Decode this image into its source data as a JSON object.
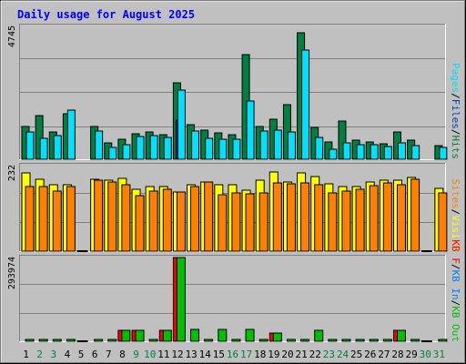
{
  "chart_data": [
    {
      "type": "bar",
      "panel": "hits-files-pages",
      "title": "Daily usage for August 2025",
      "categories": [
        "1",
        "2",
        "3",
        "4",
        "5",
        "6",
        "7",
        "8",
        "9",
        "10",
        "11",
        "12",
        "13",
        "14",
        "15",
        "16",
        "17",
        "18",
        "19",
        "20",
        "21",
        "22",
        "23",
        "24",
        "25",
        "26",
        "27",
        "28",
        "29",
        "30",
        "31"
      ],
      "weekend_days": [
        "2",
        "3",
        "9",
        "10",
        "16",
        "17",
        "23",
        "24",
        "30",
        "31"
      ],
      "ymax_label": "4745",
      "ylim": [
        0,
        4745
      ],
      "grid": true,
      "series": [
        {
          "name": "Hits",
          "color": "#008040",
          "values": [
            1180,
            1580,
            1000,
            1640,
            0,
            1190,
            580,
            730,
            920,
            990,
            900,
            2780,
            1250,
            1050,
            950,
            900,
            3780,
            1180,
            1460,
            1980,
            4570,
            1140,
            630,
            1390,
            700,
            640,
            570,
            990,
            690,
            0,
            500
          ]
        },
        {
          "name": "Files",
          "color": "#00e0ff",
          "values": [
            1000,
            750,
            860,
            1780,
            0,
            1010,
            430,
            530,
            810,
            850,
            780,
            2510,
            1030,
            770,
            730,
            740,
            2120,
            1030,
            1070,
            990,
            3970,
            800,
            370,
            580,
            520,
            520,
            460,
            600,
            500,
            0,
            430
          ]
        },
        {
          "name": "Pages",
          "color": "#0040c0",
          "values": [
            0,
            0,
            0,
            0,
            0,
            0,
            0,
            0,
            0,
            0,
            0,
            1410,
            0,
            0,
            0,
            0,
            0,
            0,
            0,
            0,
            0,
            0,
            0,
            0,
            0,
            0,
            0,
            0,
            0,
            0,
            0
          ]
        }
      ],
      "legend_labels": [
        "Pages",
        "/",
        "Files",
        "/",
        "Hits"
      ]
    },
    {
      "type": "bar",
      "panel": "visits-sites",
      "categories": [
        "1",
        "2",
        "3",
        "4",
        "5",
        "6",
        "7",
        "8",
        "9",
        "10",
        "11",
        "12",
        "13",
        "14",
        "15",
        "16",
        "17",
        "18",
        "19",
        "20",
        "21",
        "22",
        "23",
        "24",
        "25",
        "26",
        "27",
        "28",
        "29",
        "30",
        "31"
      ],
      "ymax_label": "232",
      "ylim": [
        0,
        232
      ],
      "grid": true,
      "series": [
        {
          "name": "Visits",
          "color": "#ffff00",
          "values": [
            213,
            194,
            181,
            179,
            0,
            196,
            193,
            197,
            167,
            176,
            175,
            160,
            179,
            188,
            180,
            179,
            166,
            193,
            214,
            188,
            212,
            202,
            183,
            175,
            176,
            187,
            192,
            192,
            200,
            0,
            171
          ]
        },
        {
          "name": "Sites",
          "color": "#ff8000",
          "values": [
            176,
            176,
            164,
            176,
            0,
            192,
            187,
            179,
            151,
            163,
            167,
            160,
            176,
            187,
            153,
            157,
            155,
            159,
            184,
            183,
            186,
            180,
            157,
            164,
            167,
            178,
            184,
            181,
            196,
            0,
            158
          ]
        }
      ],
      "legend_labels": [
        "Sites",
        "/",
        "Visits"
      ]
    },
    {
      "type": "bar",
      "panel": "kbin-kbout-kbf",
      "categories": [
        "1",
        "2",
        "3",
        "4",
        "5",
        "6",
        "7",
        "8",
        "9",
        "10",
        "11",
        "12",
        "13",
        "14",
        "15",
        "16",
        "17",
        "18",
        "19",
        "20",
        "21",
        "22",
        "23",
        "24",
        "25",
        "26",
        "27",
        "28",
        "29",
        "30",
        "31"
      ],
      "ymax_label": "293974",
      "ylim": [
        0,
        293974
      ],
      "grid": true,
      "series": [
        {
          "name": "KB F",
          "color": "#ff0000",
          "values": [
            0,
            0,
            0,
            0,
            0,
            0,
            0,
            37000,
            37000,
            0,
            37000,
            293974,
            0,
            0,
            0,
            0,
            0,
            0,
            29000,
            0,
            0,
            0,
            0,
            0,
            0,
            0,
            0,
            37000,
            0,
            0,
            0
          ]
        },
        {
          "name": "KB In",
          "color": "#00c000",
          "values": [
            3000,
            3000,
            7000,
            3000,
            0,
            3000,
            3000,
            37000,
            37000,
            3000,
            37000,
            293974,
            42000,
            3000,
            42000,
            3000,
            42000,
            3000,
            29000,
            3000,
            3000,
            37000,
            3000,
            3000,
            3000,
            3000,
            3000,
            37000,
            3000,
            0,
            3000
          ]
        },
        {
          "name": "KB Out",
          "color": "#000000",
          "values": [
            0,
            0,
            0,
            0,
            0,
            0,
            0,
            0,
            0,
            0,
            0,
            0,
            0,
            0,
            0,
            0,
            0,
            0,
            0,
            0,
            0,
            0,
            0,
            0,
            0,
            0,
            0,
            0,
            0,
            0,
            0
          ]
        }
      ],
      "legend_labels": [
        "KB F",
        "/",
        "KB In",
        "/",
        "KB Out"
      ]
    }
  ],
  "colors": {
    "background": "#c0c0c0",
    "plot": "#c0c0c0",
    "title": "#0000ff",
    "weekday_label": "#000000",
    "weekend_label": "#008040",
    "pages_label": "#00e0ff",
    "files_label": "#0040c0",
    "hits_label": "#008040",
    "sites_label": "#ff8000",
    "visits_label": "#ffff00",
    "kbf_label": "#ff0000",
    "kbin_label": "#0080ff",
    "kbout_label": "#00c000",
    "slash": "#000000"
  }
}
